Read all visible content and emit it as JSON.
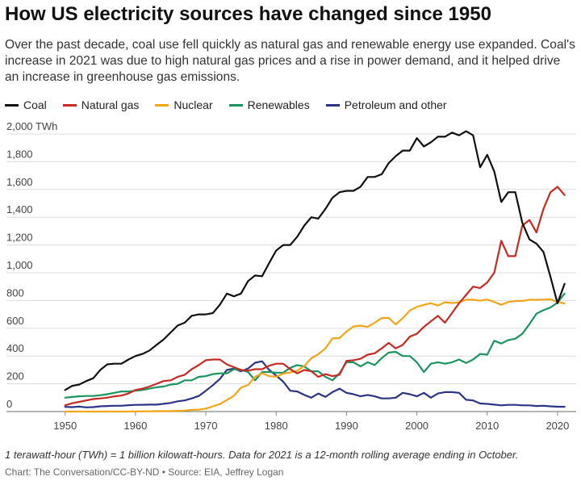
{
  "title": "How US electricity sources have changed since 1950",
  "subtitle": "Over the past decade, coal use fell quickly as natural gas and renewable energy use expanded. Coal's increase in 2021 was due to high natural gas prices and a rise in power demand, and it helped drive an increase in greenhouse gas emissions.",
  "note": "1 terawatt-hour (TWh) = 1 billion kilowatt-hours. Data for 2021 is a 12-month rolling average ending in October.",
  "source": "Chart: The Conversation/CC-BY-ND • Source: EIA, Jeffrey Logan",
  "chart_data": {
    "type": "line",
    "unit_label": "TWh",
    "ylim": [
      0,
      2000
    ],
    "xlim": [
      1949,
      2021.5
    ],
    "y_ticks": [
      0,
      200,
      400,
      600,
      800,
      1000,
      1200,
      1400,
      1600,
      1800,
      2000
    ],
    "y_tick_labels": [
      "0",
      "200",
      "400",
      "600",
      "800",
      "1,000",
      "1,200",
      "1,400",
      "1,600",
      "1,800",
      "2,000 TWh"
    ],
    "x_ticks": [
      1950,
      1960,
      1970,
      1980,
      1990,
      2000,
      2010,
      2020
    ],
    "x_tick_labels": [
      "1950",
      "1960",
      "1970",
      "1980",
      "1990",
      "2000",
      "2010",
      "2020"
    ],
    "grid": "horizontal",
    "legend_position": "top-left",
    "x": [
      1950,
      1951,
      1952,
      1953,
      1954,
      1955,
      1956,
      1957,
      1958,
      1959,
      1960,
      1961,
      1962,
      1963,
      1964,
      1965,
      1966,
      1967,
      1968,
      1969,
      1970,
      1971,
      1972,
      1973,
      1974,
      1975,
      1976,
      1977,
      1978,
      1979,
      1980,
      1981,
      1982,
      1983,
      1984,
      1985,
      1986,
      1987,
      1988,
      1989,
      1990,
      1991,
      1992,
      1993,
      1994,
      1995,
      1996,
      1997,
      1998,
      1999,
      2000,
      2001,
      2002,
      2003,
      2004,
      2005,
      2006,
      2007,
      2008,
      2009,
      2010,
      2011,
      2012,
      2013,
      2014,
      2015,
      2016,
      2017,
      2018,
      2019,
      2020,
      2021
    ],
    "series": [
      {
        "name": "Coal",
        "color": "#111111",
        "values": [
          155,
          185,
          195,
          220,
          240,
          300,
          340,
          345,
          345,
          375,
          400,
          415,
          440,
          480,
          520,
          570,
          620,
          640,
          690,
          700,
          700,
          710,
          770,
          850,
          830,
          850,
          940,
          980,
          975,
          1070,
          1160,
          1200,
          1200,
          1260,
          1340,
          1400,
          1390,
          1460,
          1540,
          1580,
          1590,
          1590,
          1620,
          1690,
          1690,
          1710,
          1790,
          1840,
          1880,
          1880,
          1970,
          1910,
          1940,
          1980,
          1980,
          2010,
          1990,
          2020,
          1990,
          1760,
          1850,
          1730,
          1510,
          1580,
          1580,
          1360,
          1240,
          1210,
          1150,
          970,
          780,
          920
        ]
      },
      {
        "name": "Natural gas",
        "color": "#c62a21",
        "values": [
          45,
          60,
          70,
          80,
          90,
          95,
          100,
          110,
          115,
          130,
          155,
          165,
          180,
          200,
          220,
          225,
          250,
          265,
          305,
          335,
          370,
          375,
          375,
          340,
          320,
          300,
          295,
          305,
          305,
          330,
          345,
          345,
          305,
          275,
          300,
          290,
          250,
          270,
          255,
          265,
          365,
          370,
          380,
          410,
          420,
          455,
          495,
          455,
          480,
          540,
          560,
          610,
          650,
          690,
          640,
          710,
          780,
          840,
          900,
          890,
          930,
          1000,
          1230,
          1120,
          1120,
          1340,
          1380,
          1290,
          1460,
          1580,
          1620,
          1560
        ]
      },
      {
        "name": "Nuclear",
        "color": "#f2a516",
        "values": [
          0,
          0,
          0,
          0,
          0,
          0,
          0,
          0,
          0,
          0,
          1,
          2,
          2,
          3,
          3,
          4,
          5,
          7,
          12,
          14,
          21,
          38,
          54,
          83,
          114,
          172,
          191,
          250,
          276,
          255,
          251,
          273,
          282,
          294,
          328,
          384,
          414,
          455,
          527,
          529,
          577,
          613,
          619,
          610,
          640,
          673,
          675,
          628,
          673,
          728,
          754,
          769,
          780,
          764,
          788,
          782,
          787,
          806,
          806,
          799,
          807,
          790,
          769,
          789,
          797,
          797,
          806,
          805,
          807,
          809,
          790,
          779
        ]
      },
      {
        "name": "Renewables",
        "color": "#1a9560",
        "values": [
          100,
          105,
          110,
          112,
          112,
          118,
          125,
          135,
          145,
          145,
          150,
          155,
          165,
          175,
          180,
          195,
          200,
          225,
          225,
          250,
          255,
          270,
          275,
          275,
          305,
          300,
          285,
          225,
          285,
          285,
          280,
          280,
          315,
          335,
          325,
          290,
          290,
          250,
          225,
          275,
          355,
          355,
          325,
          355,
          335,
          385,
          425,
          430,
          400,
          400,
          355,
          285,
          345,
          355,
          345,
          355,
          375,
          350,
          375,
          415,
          410,
          510,
          490,
          515,
          525,
          560,
          630,
          705,
          730,
          750,
          785,
          850
        ]
      },
      {
        "name": "Petroleum and other",
        "color": "#2c3585",
        "values": [
          34,
          32,
          36,
          30,
          32,
          38,
          40,
          42,
          42,
          46,
          48,
          49,
          50,
          50,
          56,
          62,
          74,
          80,
          95,
          112,
          150,
          190,
          235,
          300,
          310,
          290,
          310,
          352,
          362,
          300,
          260,
          215,
          150,
          145,
          120,
          100,
          130,
          105,
          140,
          165,
          135,
          125,
          110,
          120,
          110,
          95,
          95,
          100,
          135,
          125,
          110,
          135,
          100,
          130,
          140,
          140,
          135,
          85,
          80,
          58,
          55,
          50,
          45,
          48,
          48,
          45,
          45,
          40,
          42,
          38,
          35,
          35
        ]
      }
    ]
  }
}
